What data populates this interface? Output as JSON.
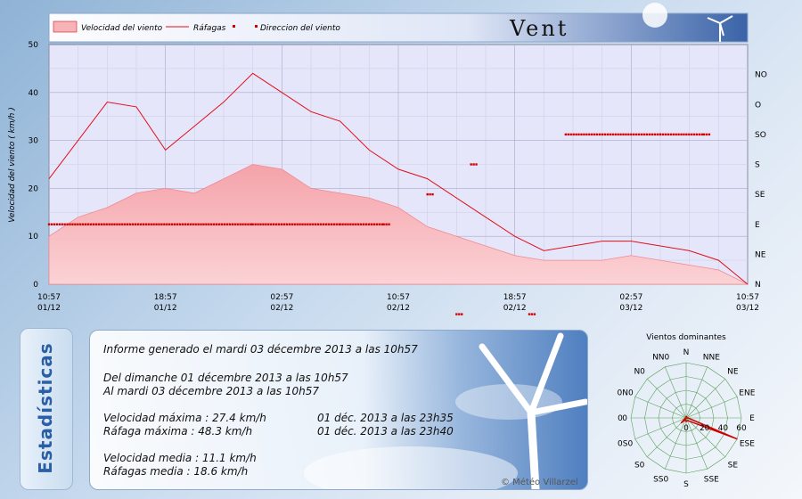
{
  "header": {
    "title": "Vent"
  },
  "legend": {
    "speed": "Velocidad del viento",
    "gust": "Ráfagas",
    "direction": "Direccion del viento"
  },
  "colors": {
    "speed_fill": "#f6b3b8",
    "gust_line": "#e0101a",
    "direction_dot": "#d40000",
    "plot_bg": "#e6e6fb"
  },
  "chart_data": {
    "type": "line",
    "ylabel": "Velocidad del viento  ( km/h )",
    "ylim": [
      0,
      50
    ],
    "y_ticks": [
      0,
      10,
      20,
      30,
      40,
      50
    ],
    "x_ticks": [
      {
        "time": "10:57",
        "date": "01/12"
      },
      {
        "time": "18:57",
        "date": "01/12"
      },
      {
        "time": "02:57",
        "date": "02/12"
      },
      {
        "time": "10:57",
        "date": "02/12"
      },
      {
        "time": "18:57",
        "date": "02/12"
      },
      {
        "time": "02:57",
        "date": "03/12"
      },
      {
        "time": "10:57",
        "date": "03/12"
      }
    ],
    "x_hours": [
      0,
      2,
      4,
      6,
      8,
      10,
      12,
      14,
      16,
      18,
      20,
      22,
      24,
      26,
      28,
      30,
      32,
      34,
      36,
      38,
      40,
      42,
      44,
      46,
      48
    ],
    "series": [
      {
        "name": "Velocidad del viento",
        "kind": "area",
        "values": [
          10,
          14,
          16,
          19,
          20,
          19,
          22,
          25,
          24,
          20,
          19,
          18,
          16,
          12,
          10,
          8,
          6,
          5,
          5,
          5,
          6,
          5,
          4,
          3,
          0
        ]
      },
      {
        "name": "Ráfagas",
        "kind": "line",
        "values": [
          22,
          30,
          38,
          37,
          28,
          33,
          38,
          44,
          40,
          36,
          34,
          28,
          24,
          22,
          18,
          14,
          10,
          7,
          8,
          9,
          9,
          8,
          7,
          5,
          0
        ]
      },
      {
        "name": "Direccion del viento",
        "kind": "points",
        "points": [
          [
            0,
            "E"
          ],
          [
            14,
            "E"
          ],
          [
            20,
            "E"
          ],
          [
            23,
            "E"
          ],
          [
            26,
            "SE"
          ],
          [
            28,
            "SSE"
          ],
          [
            29,
            "S"
          ],
          [
            33,
            "SSO"
          ],
          [
            35.5,
            "SO"
          ],
          [
            42,
            "SO"
          ],
          [
            45,
            "SO"
          ]
        ]
      }
    ],
    "direction_axis": [
      "N",
      "NE",
      "E",
      "SE",
      "S",
      "SO",
      "O",
      "NO"
    ]
  },
  "stats": {
    "tab_title": "Estadísticas",
    "generated": "Informe generado el mardi 03 décembre 2013 a las 10h57",
    "from": "Del dimanche 01 décembre 2013 a las 10h57",
    "to": "Al mardi 03 décembre 2013 a las 10h57",
    "max_speed": "Velocidad máxima : 27.4 km/h",
    "max_speed_date": "01 déc. 2013 a las 23h35",
    "max_gust": "Ráfaga máxima : 48.3 km/h",
    "max_gust_date": "01 déc. 2013 a las 23h40",
    "avg_speed": "Velocidad media : 11.1 km/h",
    "avg_gust": "Ráfagas media : 18.6 km/h",
    "copyright": "© Météo Villarzel"
  },
  "rose": {
    "title": "Vientos dominantes",
    "directions": [
      "N",
      "NNE",
      "NE",
      "ENE",
      "E",
      "ESE",
      "SE",
      "SSE",
      "S",
      "SSO",
      "SO",
      "OSO",
      "O",
      "ONO",
      "NO",
      "NNO"
    ],
    "direction_labels": [
      "N",
      "NNE",
      "NE",
      "ENE",
      "E",
      "ESE",
      "SE",
      "SSE",
      "S",
      "SS0",
      "S0",
      "0S0",
      "0",
      "0N0",
      "N0",
      "NN0"
    ],
    "scale_ticks": [
      "0",
      "20",
      "40",
      "60"
    ],
    "left_tick": "0",
    "values": [
      2,
      1,
      0,
      0,
      2,
      60,
      5,
      3,
      4,
      2,
      8,
      1,
      0,
      0,
      0,
      0
    ]
  }
}
